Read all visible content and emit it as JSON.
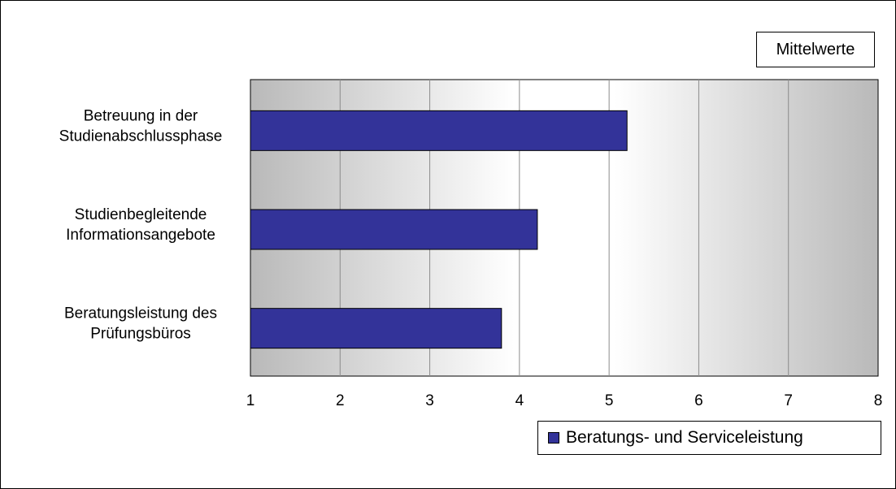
{
  "chart_data": {
    "type": "bar",
    "orientation": "horizontal",
    "categories": [
      "Betreuung in der Studienabschlussphase",
      "Studienbegleitende Informationsangebote",
      "Beratungsleistung des Prüfungsbüros"
    ],
    "category_lines": [
      [
        "Betreuung in der",
        "Studienabschlussphase"
      ],
      [
        "Studienbegleitende",
        "Informationsangebote"
      ],
      [
        "Beratungsleistung des",
        "Prüfungsbüros"
      ]
    ],
    "series": [
      {
        "name": "Beratungs- und Serviceleistung",
        "values": [
          5.2,
          4.2,
          3.8
        ],
        "color": "#333399"
      }
    ],
    "xlim": [
      1,
      8
    ],
    "xticks": [
      "1",
      "2",
      "3",
      "4",
      "5",
      "6",
      "7",
      "8"
    ],
    "grid": true,
    "legend_position": "bottom-right",
    "annotation": "Mittelwerte"
  }
}
